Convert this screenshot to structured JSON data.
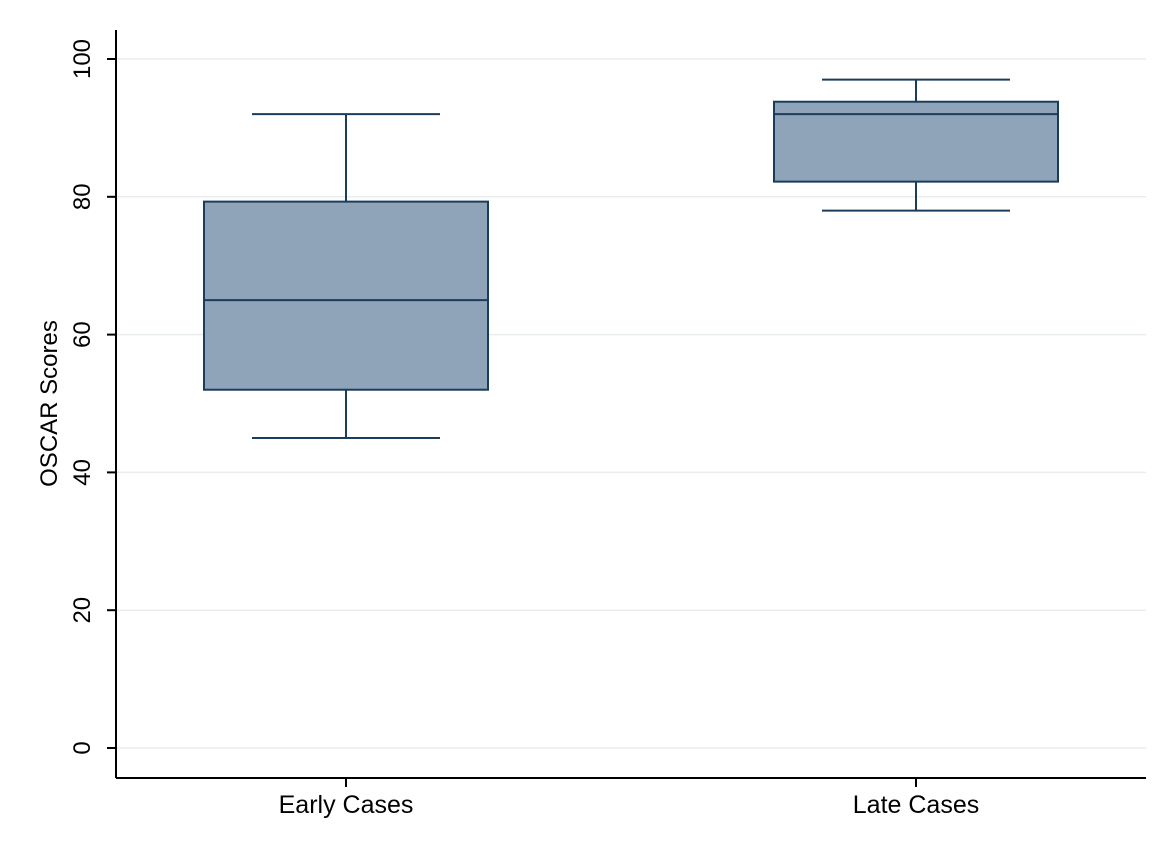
{
  "chart_data": {
    "type": "box",
    "ylabel": "OSCAR Scores",
    "xlabel": "",
    "ylim": [
      0,
      100
    ],
    "yticks": [
      0,
      20,
      40,
      60,
      80,
      100
    ],
    "grid": true,
    "categories": [
      "Early Cases",
      "Late Cases"
    ],
    "boxes": [
      {
        "category": "Early Cases",
        "whisker_low": 45,
        "q1": 52,
        "median": 65,
        "q3": 79.3,
        "whisker_high": 92
      },
      {
        "category": "Late Cases",
        "whisker_low": 78,
        "q1": 82.2,
        "median": 92,
        "q3": 93.8,
        "whisker_high": 97
      }
    ],
    "colors": {
      "box_fill": "#8fa4b8",
      "box_stroke": "#1a3d5c",
      "grid": "#e8edf0",
      "axis": "#000000"
    }
  }
}
